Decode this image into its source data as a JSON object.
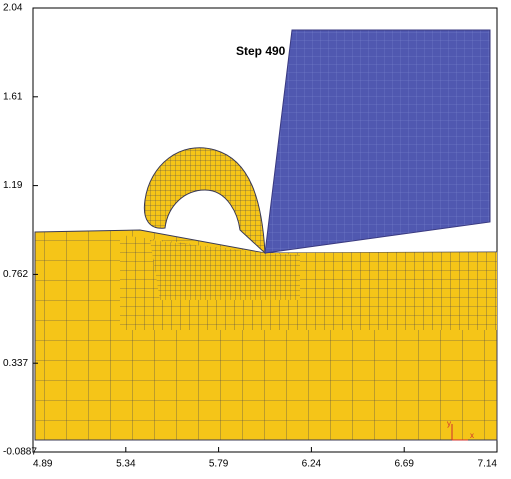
{
  "label": "Step 490",
  "x_axis": {
    "ticks": [
      "4.89",
      "5.34",
      "5.79",
      "6.24",
      "6.69",
      "7.14"
    ]
  },
  "y_axis": {
    "ticks": [
      "2.04",
      "1.61",
      "1.19",
      "0.762",
      "0.337",
      "-0.0887"
    ]
  },
  "triad": {
    "x": "x",
    "y": "y"
  }
}
